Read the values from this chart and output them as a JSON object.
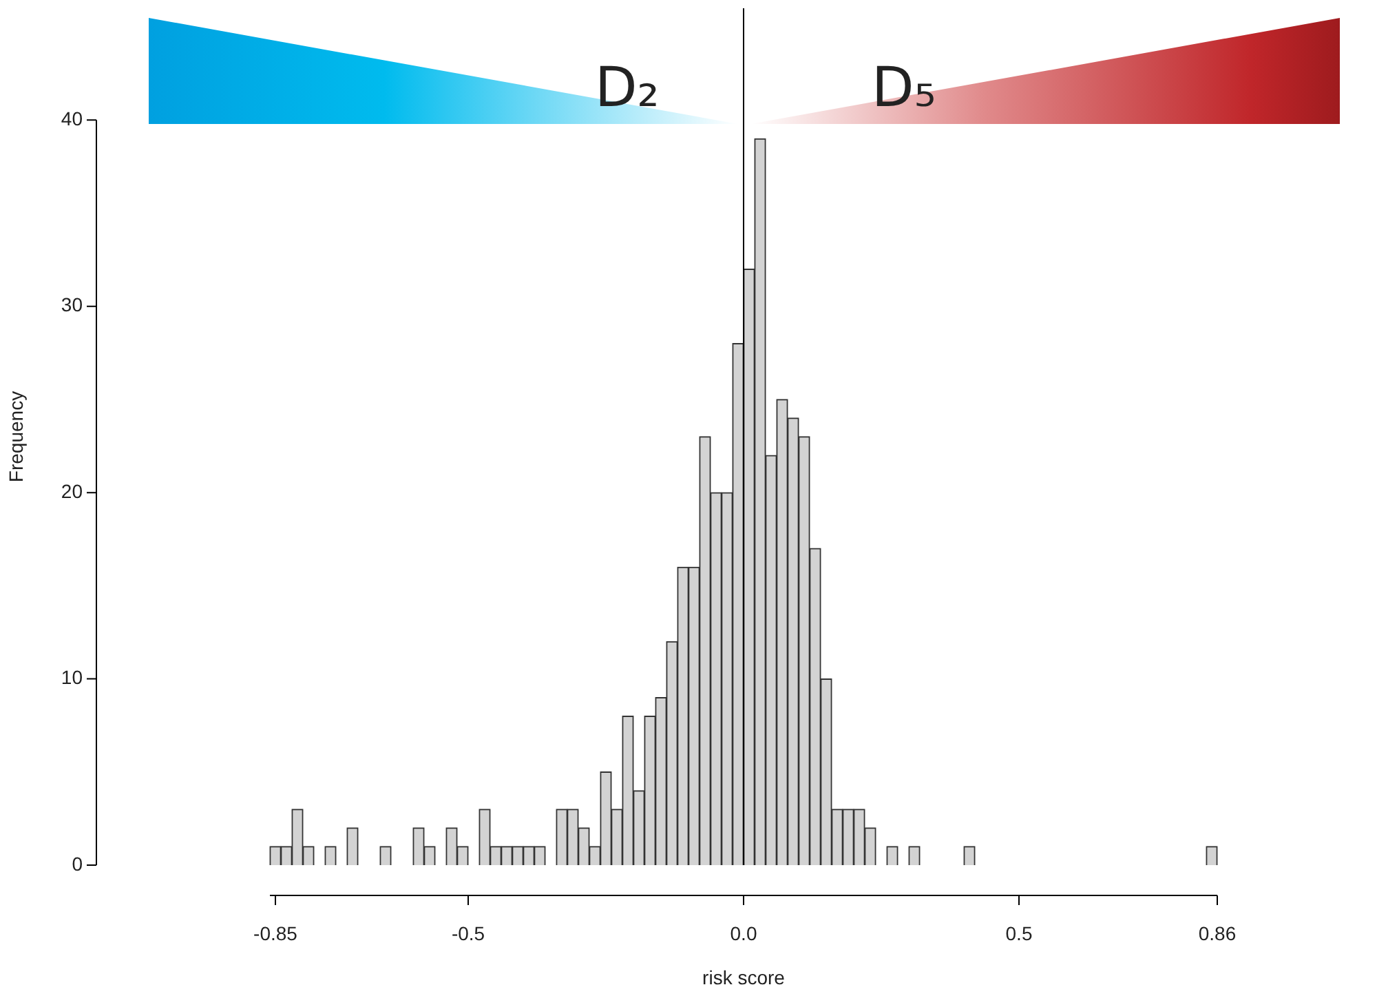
{
  "chart_data": {
    "type": "histogram",
    "xlabel": "risk score",
    "ylabel": "Frequency",
    "annotations": [
      "D₂",
      "D₅"
    ],
    "bins": [
      -0.86,
      -0.84,
      -0.82,
      -0.8,
      -0.78,
      -0.76,
      -0.74,
      -0.72,
      -0.7,
      -0.68,
      -0.66,
      -0.64,
      -0.62,
      -0.6,
      -0.58,
      -0.56,
      -0.54,
      -0.52,
      -0.5,
      -0.48,
      -0.46,
      -0.44,
      -0.42,
      -0.4,
      -0.38,
      -0.36,
      -0.34,
      -0.32,
      -0.3,
      -0.28,
      -0.26,
      -0.24,
      -0.22,
      -0.2,
      -0.18,
      -0.16,
      -0.14,
      -0.12,
      -0.1,
      -0.08,
      -0.06,
      -0.04,
      -0.02,
      0,
      0.02,
      0.04,
      0.06,
      0.08,
      0.1,
      0.12,
      0.14,
      0.16,
      0.18,
      0.2,
      0.22,
      0.24,
      0.26,
      0.28,
      0.3,
      0.32,
      0.34,
      0.36,
      0.38,
      0.4,
      0.42,
      0.44,
      0.46,
      0.48,
      0.5,
      0.52,
      0.54,
      0.56,
      0.58,
      0.6,
      0.62,
      0.64,
      0.66,
      0.68,
      0.7,
      0.72,
      0.74,
      0.76,
      0.78,
      0.8,
      0.82,
      0.84,
      0.86
    ],
    "values": [
      1,
      1,
      3,
      1,
      0,
      1,
      0,
      2,
      0,
      0,
      1,
      0,
      0,
      2,
      1,
      0,
      2,
      1,
      0,
      3,
      1,
      1,
      1,
      1,
      1,
      0,
      3,
      3,
      2,
      1,
      5,
      3,
      8,
      4,
      8,
      9,
      12,
      16,
      16,
      23,
      20,
      20,
      28,
      32,
      39,
      22,
      25,
      24,
      23,
      17,
      10,
      3,
      3,
      3,
      2,
      0,
      1,
      0,
      1,
      0,
      0,
      0,
      0,
      1,
      0,
      0,
      0,
      0,
      0,
      0,
      0,
      0,
      0,
      0,
      0,
      0,
      0,
      0,
      0,
      0,
      0,
      0,
      0,
      0,
      0,
      1
    ],
    "color": "#d3d3d3",
    "xlim": [
      -0.86,
      0.86
    ],
    "xticks": [
      -0.85,
      -0.5,
      {
        "value": 0,
        "label": "0.0"
      },
      0.5,
      0.86
    ],
    "ylim": [
      0,
      46
    ],
    "yticks": [
      0,
      10,
      20,
      30,
      40
    ],
    "ref_lines": [
      {
        "axis": "x",
        "value": 0,
        "color": "#000000"
      }
    ],
    "grid": false,
    "legend": false
  }
}
